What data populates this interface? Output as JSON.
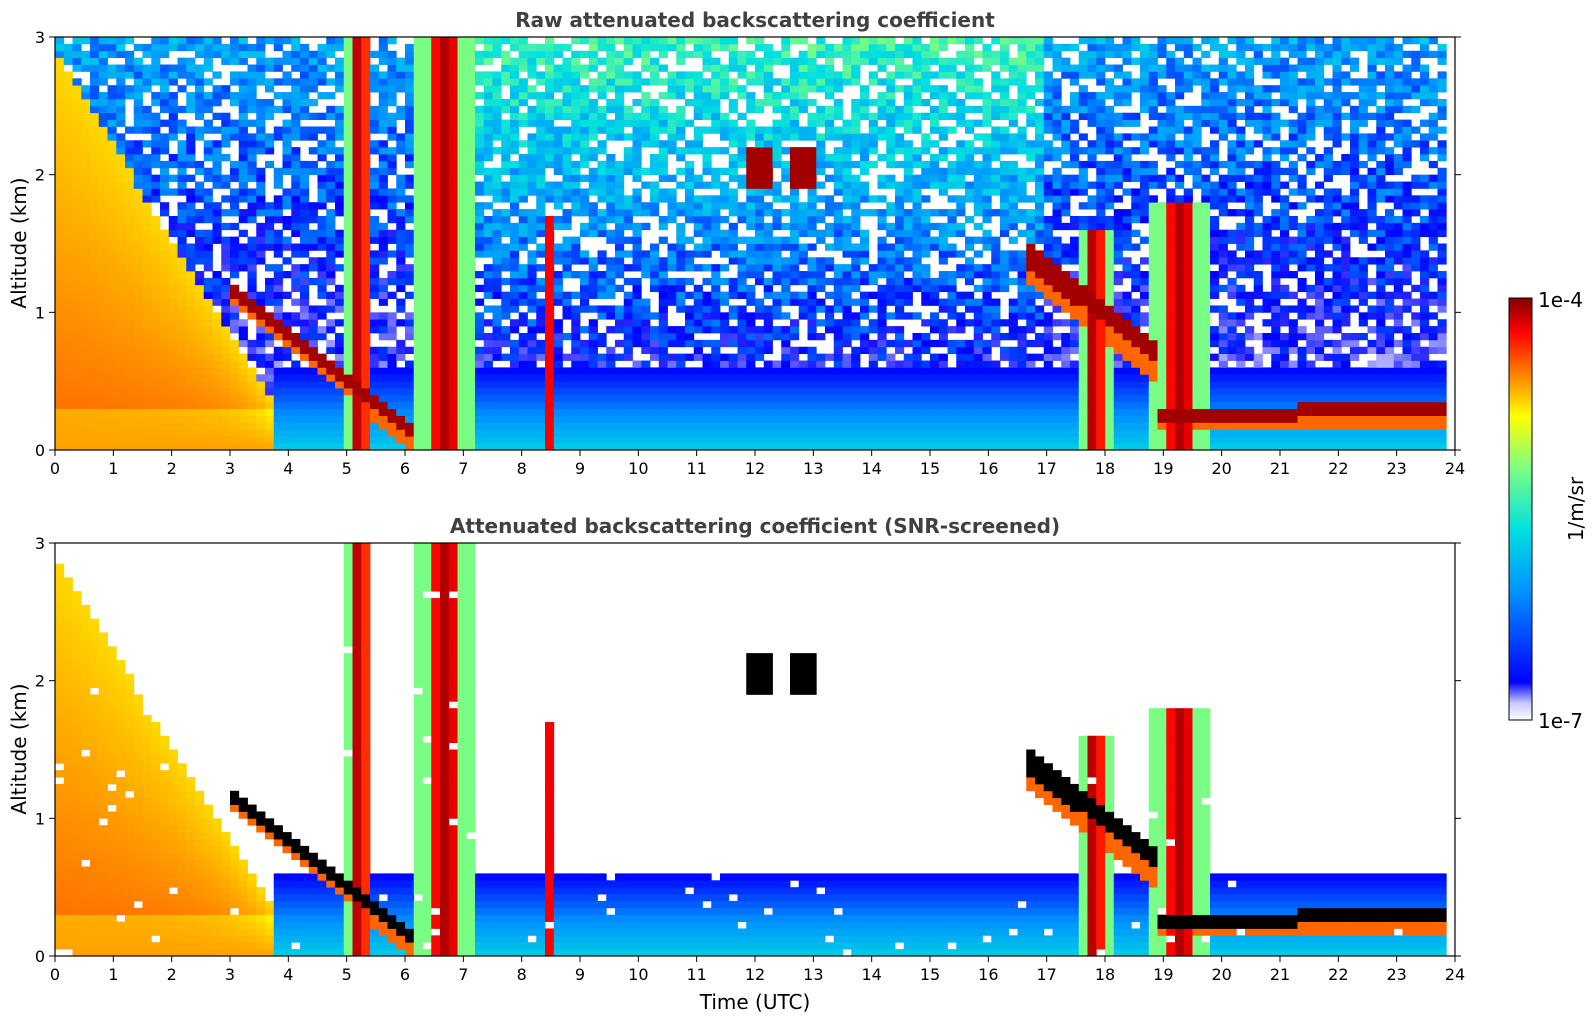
{
  "chart_data": [
    {
      "type": "heatmap",
      "title": "Raw attenuated backscattering coefficient",
      "xlabel": "",
      "ylabel": "Altitude (km)",
      "xlim": [
        0,
        24
      ],
      "ylim": [
        0,
        3
      ],
      "x_ticks": [
        "0",
        "1",
        "2",
        "3",
        "4",
        "5",
        "6",
        "7",
        "8",
        "9",
        "10",
        "11",
        "12",
        "13",
        "14",
        "15",
        "16",
        "17",
        "18",
        "19",
        "20",
        "21",
        "22",
        "23",
        "24"
      ],
      "y_ticks": [
        "0",
        "1",
        "2",
        "3"
      ],
      "screened": false,
      "background_noise": "high",
      "features": [
        {
          "kind": "aerosol_layer",
          "x_start": 0.0,
          "x_end": 3.8,
          "y_top_start": 2.9,
          "y_top_end": 0.3,
          "peak": 0.7
        },
        {
          "kind": "cloud_base",
          "x_start": 3.0,
          "x_end": 6.2,
          "y_start": 1.2,
          "y_end": 0.1
        },
        {
          "kind": "cloud_plume",
          "x": 5.2,
          "y_top": 3.0,
          "width": 0.25
        },
        {
          "kind": "cloud_plume",
          "x": 6.7,
          "y_top": 3.0,
          "width": 0.5
        },
        {
          "kind": "cloud_plume",
          "x": 8.5,
          "y_top": 1.7,
          "width": 0.08
        },
        {
          "kind": "cloud_patch",
          "x": 12.1,
          "y": 2.05
        },
        {
          "kind": "cloud_patch",
          "x": 12.8,
          "y": 2.05
        },
        {
          "kind": "cloud_layer",
          "x_start": 16.6,
          "x_end": 18.9,
          "y_start": 1.45,
          "y_end": 0.7
        },
        {
          "kind": "cloud_plume",
          "x": 17.8,
          "y_top": 1.6,
          "width": 0.3
        },
        {
          "kind": "cloud_plume",
          "x": 19.3,
          "y_top": 1.8,
          "width": 0.5
        },
        {
          "kind": "cloud_base",
          "x_start": 18.9,
          "x_end": 23.8,
          "y_start": 0.25,
          "y_end": 0.3
        },
        {
          "kind": "boundary_layer",
          "x_start": 3.8,
          "x_end": 23.8,
          "y_top": 0.6
        }
      ]
    },
    {
      "type": "heatmap",
      "title": "Attenuated backscattering coefficient (SNR-screened)",
      "xlabel": "Time (UTC)",
      "ylabel": "Altitude (km)",
      "xlim": [
        0,
        24
      ],
      "ylim": [
        0,
        3
      ],
      "x_ticks": [
        "0",
        "1",
        "2",
        "3",
        "4",
        "5",
        "6",
        "7",
        "8",
        "9",
        "10",
        "11",
        "12",
        "13",
        "14",
        "15",
        "16",
        "17",
        "18",
        "19",
        "20",
        "21",
        "22",
        "23",
        "24"
      ],
      "y_ticks": [
        "0",
        "1",
        "2",
        "3"
      ],
      "screened": true,
      "background_noise": "none",
      "features": [
        {
          "kind": "aerosol_layer",
          "x_start": 0.0,
          "x_end": 3.8,
          "y_top_start": 2.9,
          "y_top_end": 0.3,
          "peak": 0.7
        },
        {
          "kind": "cloud_base",
          "x_start": 3.0,
          "x_end": 6.2,
          "y_start": 1.2,
          "y_end": 0.1
        },
        {
          "kind": "cloud_plume",
          "x": 5.2,
          "y_top": 3.0,
          "width": 0.25
        },
        {
          "kind": "cloud_plume",
          "x": 6.7,
          "y_top": 3.0,
          "width": 0.5
        },
        {
          "kind": "cloud_plume",
          "x": 8.5,
          "y_top": 1.7,
          "width": 0.08
        },
        {
          "kind": "cloud_patch",
          "x": 12.1,
          "y": 2.05
        },
        {
          "kind": "cloud_patch",
          "x": 12.8,
          "y": 2.05
        },
        {
          "kind": "cloud_layer",
          "x_start": 16.6,
          "x_end": 18.9,
          "y_start": 1.45,
          "y_end": 0.7
        },
        {
          "kind": "cloud_plume",
          "x": 17.8,
          "y_top": 1.6,
          "width": 0.3
        },
        {
          "kind": "cloud_plume",
          "x": 19.3,
          "y_top": 1.8,
          "width": 0.5
        },
        {
          "kind": "cloud_base",
          "x_start": 18.9,
          "x_end": 23.8,
          "y_start": 0.25,
          "y_end": 0.3
        },
        {
          "kind": "boundary_layer",
          "x_start": 3.8,
          "x_end": 23.8,
          "y_top": 0.6
        }
      ]
    }
  ],
  "colorbar": {
    "label": "1/m/sr",
    "max_label": "1e-4",
    "min_label": "1e-7",
    "scale": "log",
    "colormap": [
      "#ffffff",
      "#e0e0ff",
      "#0000ff",
      "#0090ff",
      "#00e0e0",
      "#80ff80",
      "#ffff00",
      "#ff8000",
      "#ff0000",
      "#800000"
    ]
  }
}
